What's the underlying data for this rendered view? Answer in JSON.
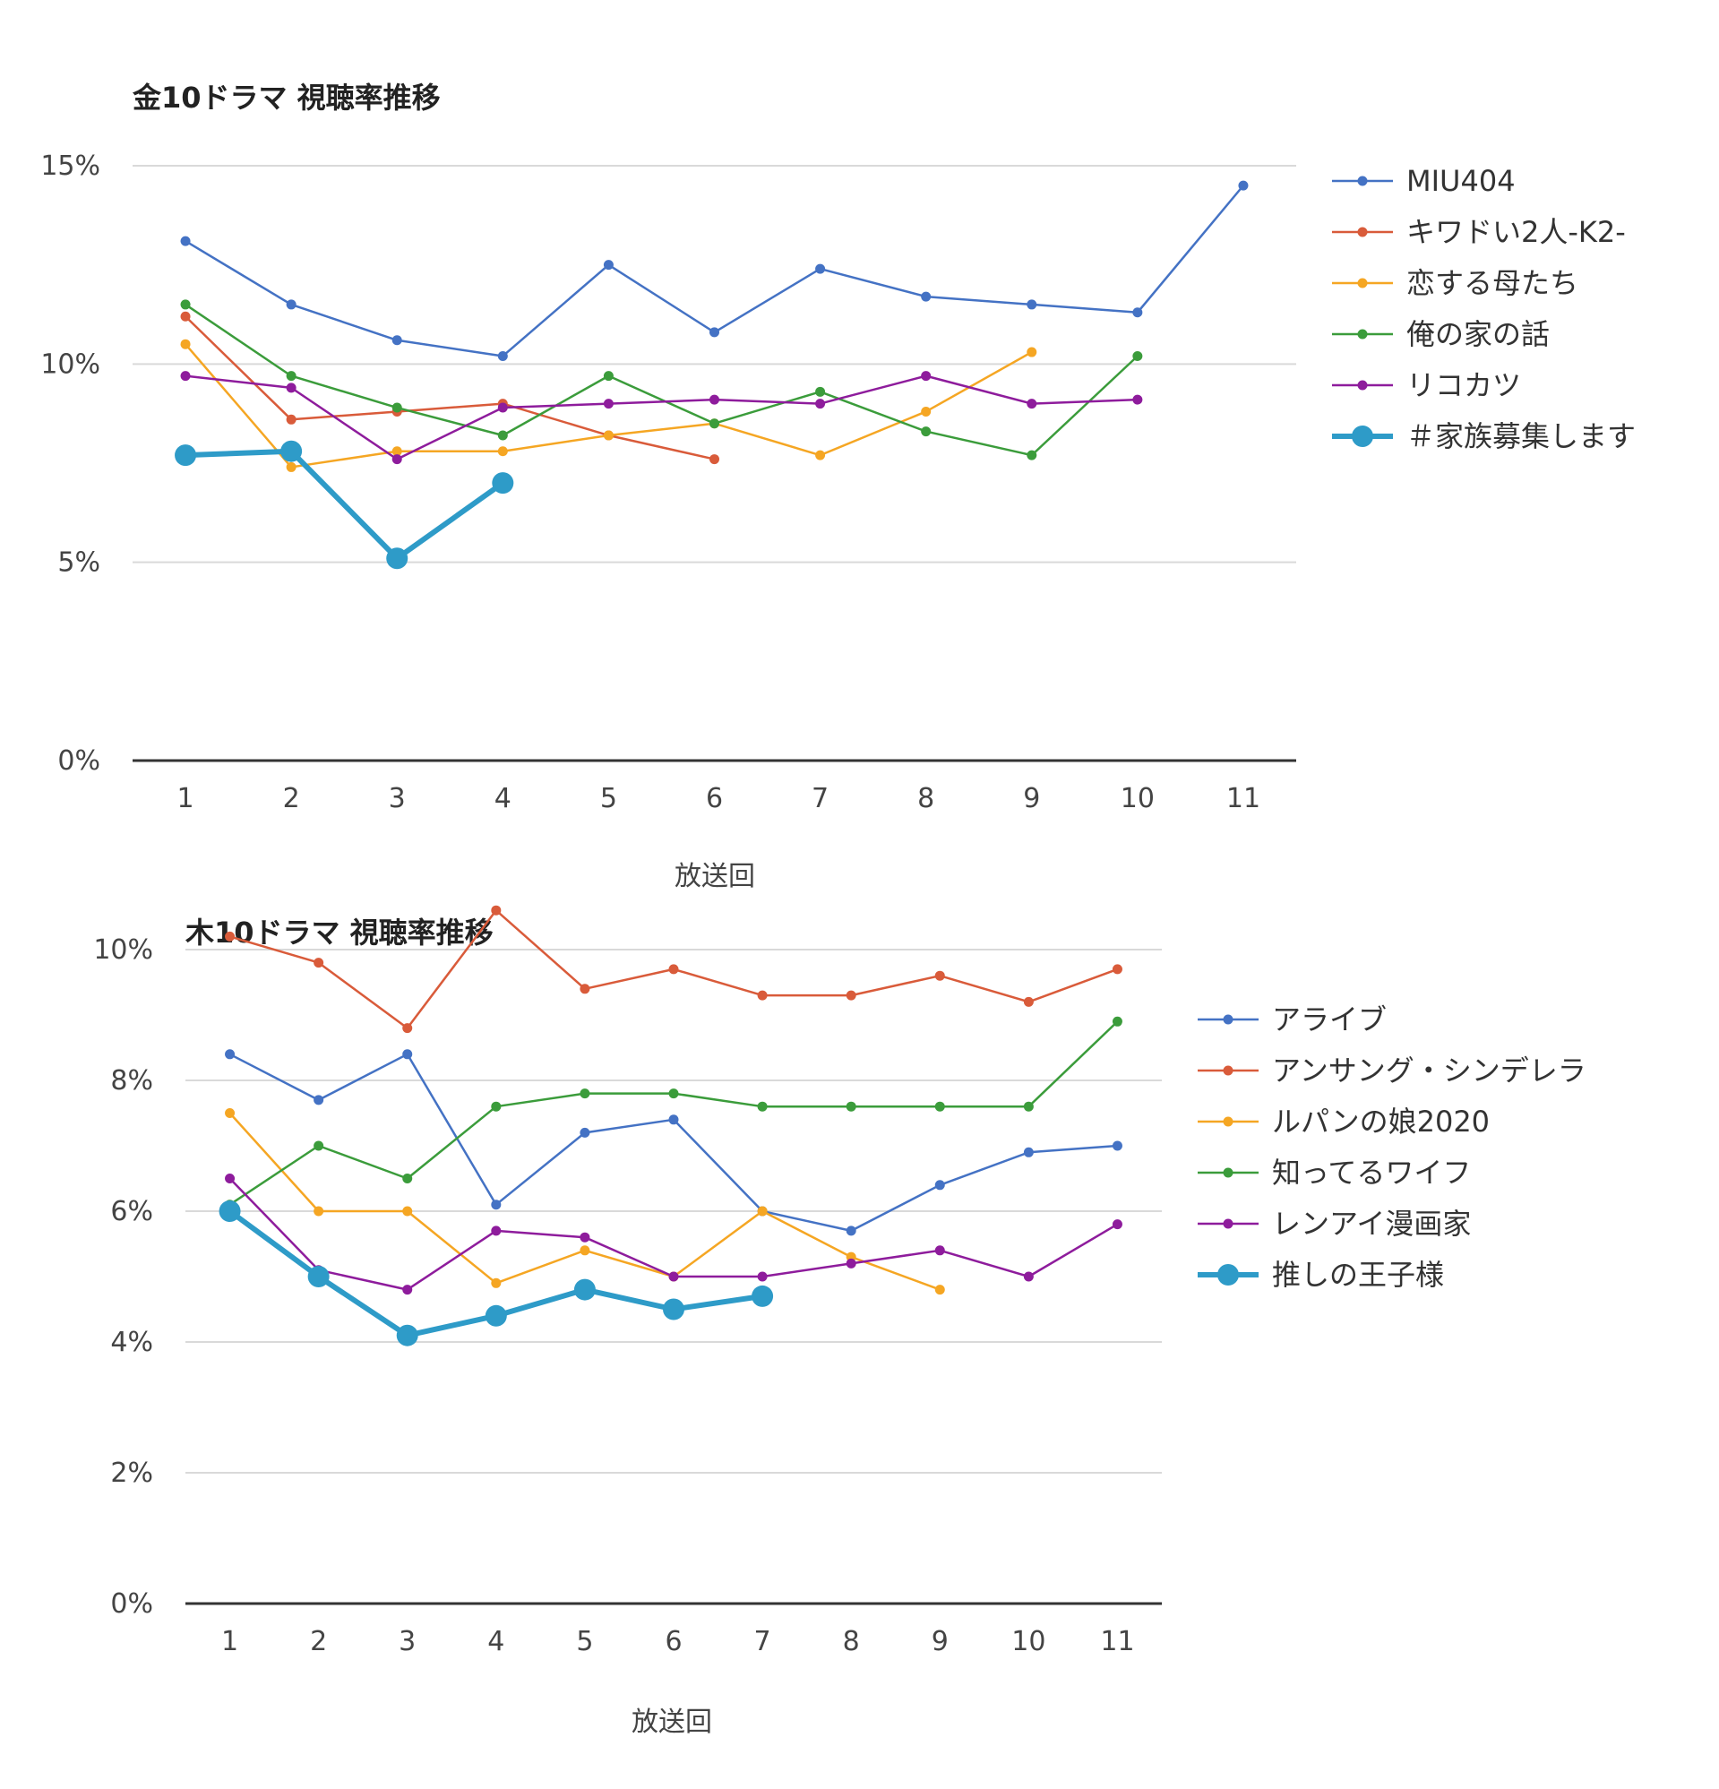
{
  "chart_data": [
    {
      "type": "line",
      "title": "金10ドラマ 視聴率推移",
      "xlabel": "放送回",
      "ylabel": "",
      "ylim": [
        0,
        15
      ],
      "y_ticks": [
        "0%",
        "5%",
        "10%",
        "15%"
      ],
      "y_tick_values": [
        0,
        5,
        10,
        15
      ],
      "categories": [
        "1",
        "2",
        "3",
        "4",
        "5",
        "6",
        "7",
        "8",
        "9",
        "10",
        "11"
      ],
      "grid": true,
      "legend": "right",
      "series": [
        {
          "name": "MIU404",
          "color": "#4472C4",
          "highlight": false,
          "values": [
            13.1,
            11.5,
            10.6,
            10.2,
            12.5,
            10.8,
            12.4,
            11.7,
            11.5,
            11.3,
            14.5
          ]
        },
        {
          "name": "キワドい2人-K2-",
          "color": "#D95B3A",
          "highlight": false,
          "values": [
            11.2,
            8.6,
            8.8,
            9.0,
            8.2,
            7.6,
            null,
            null,
            null,
            null,
            null
          ]
        },
        {
          "name": "恋する母たち",
          "color": "#F5A623",
          "highlight": false,
          "values": [
            10.5,
            7.4,
            7.8,
            7.8,
            8.2,
            8.5,
            7.7,
            8.8,
            10.3,
            null,
            null
          ]
        },
        {
          "name": "俺の家の話",
          "color": "#3B9C3B",
          "highlight": false,
          "values": [
            11.5,
            9.7,
            8.9,
            8.2,
            9.7,
            8.5,
            9.3,
            8.3,
            7.7,
            10.2,
            null
          ]
        },
        {
          "name": "リコカツ",
          "color": "#8E1C9C",
          "highlight": false,
          "values": [
            9.7,
            9.4,
            7.6,
            8.9,
            9.0,
            9.1,
            9.0,
            9.7,
            9.0,
            9.1,
            null
          ]
        },
        {
          "name": "＃家族募集します",
          "color": "#2E9BC8",
          "highlight": true,
          "values": [
            7.7,
            7.8,
            5.1,
            7.0,
            null,
            null,
            null,
            null,
            null,
            null,
            null
          ]
        }
      ]
    },
    {
      "type": "line",
      "title": "木10ドラマ 視聴率推移",
      "xlabel": "放送回",
      "ylabel": "",
      "ylim": [
        0,
        10
      ],
      "y_ticks": [
        "0%",
        "2%",
        "4%",
        "6%",
        "8%",
        "10%"
      ],
      "y_tick_values": [
        0,
        2,
        4,
        6,
        8,
        10
      ],
      "categories": [
        "1",
        "2",
        "3",
        "4",
        "5",
        "6",
        "7",
        "8",
        "9",
        "10",
        "11"
      ],
      "grid": true,
      "legend": "right",
      "series": [
        {
          "name": "アライブ",
          "color": "#4472C4",
          "highlight": false,
          "values": [
            8.4,
            7.7,
            8.4,
            6.1,
            7.2,
            7.4,
            6.0,
            5.7,
            6.4,
            6.9,
            7.0
          ]
        },
        {
          "name": "アンサング・シンデレラ",
          "color": "#D95B3A",
          "highlight": false,
          "values": [
            10.2,
            9.8,
            8.8,
            10.6,
            9.4,
            9.7,
            9.3,
            9.3,
            9.6,
            9.2,
            9.7
          ]
        },
        {
          "name": "ルパンの娘2020",
          "color": "#F5A623",
          "highlight": false,
          "values": [
            7.5,
            6.0,
            6.0,
            4.9,
            5.4,
            5.0,
            6.0,
            5.3,
            4.8,
            null,
            null
          ]
        },
        {
          "name": "知ってるワイフ",
          "color": "#3B9C3B",
          "highlight": false,
          "values": [
            6.1,
            7.0,
            6.5,
            7.6,
            7.8,
            7.8,
            7.6,
            7.6,
            7.6,
            7.6,
            8.9
          ]
        },
        {
          "name": "レンアイ漫画家",
          "color": "#8E1C9C",
          "highlight": false,
          "values": [
            6.5,
            5.1,
            4.8,
            5.7,
            5.6,
            5.0,
            5.0,
            5.2,
            5.4,
            5.0,
            5.8
          ]
        },
        {
          "name": "推しの王子様",
          "color": "#2E9BC8",
          "highlight": true,
          "values": [
            6.0,
            5.0,
            4.1,
            4.4,
            4.8,
            4.5,
            4.7,
            null,
            null,
            null,
            null
          ]
        }
      ]
    }
  ]
}
